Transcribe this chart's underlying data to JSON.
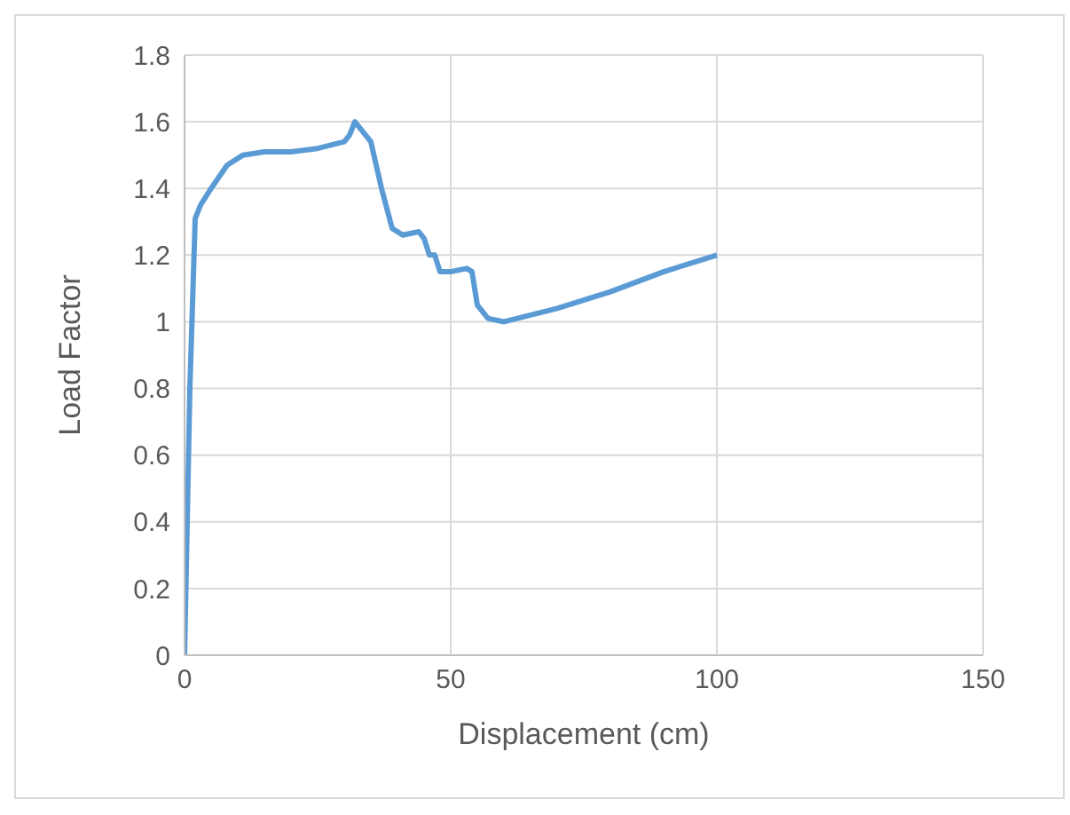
{
  "chart_data": {
    "type": "line",
    "xlabel": "Displacement (cm)",
    "ylabel": "Load Factor",
    "x": [
      0,
      1,
      2,
      3,
      5,
      8,
      11,
      15,
      20,
      25,
      30,
      31,
      32,
      33,
      35,
      37,
      39,
      41,
      44,
      45,
      46,
      47,
      48,
      50,
      53,
      54,
      55,
      57,
      60,
      70,
      80,
      90,
      100
    ],
    "series": [
      {
        "color": "#5b9bd5",
        "values": [
          0,
          0.8,
          1.31,
          1.35,
          1.4,
          1.47,
          1.5,
          1.51,
          1.51,
          1.52,
          1.54,
          1.56,
          1.6,
          1.58,
          1.54,
          1.4,
          1.28,
          1.26,
          1.27,
          1.25,
          1.2,
          1.2,
          1.15,
          1.15,
          1.16,
          1.15,
          1.05,
          1.01,
          1.0,
          1.04,
          1.09,
          1.15,
          1.2
        ]
      }
    ],
    "xlim": [
      0,
      150
    ],
    "xticks": [
      0,
      50,
      100,
      150
    ],
    "ylim": [
      0,
      1.8
    ],
    "yticks": [
      0,
      0.2,
      0.4,
      0.6,
      0.8,
      1,
      1.2,
      1.4,
      1.6,
      1.8
    ],
    "grid": true,
    "legend": false,
    "marker": "none",
    "line_style": "solid"
  }
}
